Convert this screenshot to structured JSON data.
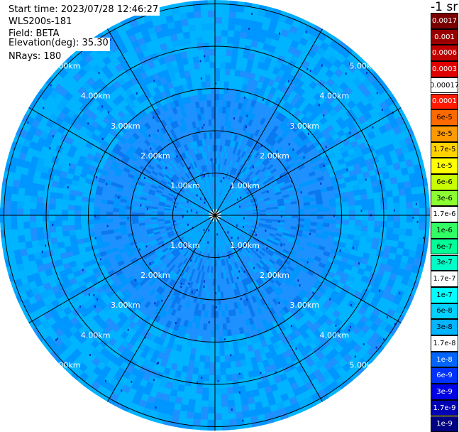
{
  "header": {
    "start_time": "Start time: 2023/07/28 12:46:27",
    "instrument": "WLS200s-181",
    "field": "Field: BETA",
    "elevation": "Elevation(deg): 35.30",
    "nrays": "NRays: 180"
  },
  "colorbar": {
    "unit_label": "-1 sr",
    "entries": [
      {
        "label": "0.0017",
        "color": "#7a0000",
        "text_color": "#ffffff"
      },
      {
        "label": "0.001",
        "color": "#9a0000",
        "text_color": "#ffffff"
      },
      {
        "label": "0.0006",
        "color": "#c00000",
        "text_color": "#ffffff"
      },
      {
        "label": "0.0003",
        "color": "#e00000",
        "text_color": "#ffffff"
      },
      {
        "label": "0.00017",
        "color": "#ffffff",
        "text_color": "#000000"
      },
      {
        "label": "0.0001",
        "color": "#ff1a00",
        "text_color": "#ffffff"
      },
      {
        "label": "6e-5",
        "color": "#ff6a00",
        "text_color": "#000000"
      },
      {
        "label": "3e-5",
        "color": "#ff9a00",
        "text_color": "#000000"
      },
      {
        "label": "1.7e-5",
        "color": "#ffd200",
        "text_color": "#000000"
      },
      {
        "label": "1e-5",
        "color": "#ffff00",
        "text_color": "#000000"
      },
      {
        "label": "6e-6",
        "color": "#c8ff00",
        "text_color": "#000000"
      },
      {
        "label": "3e-6",
        "color": "#8cff32",
        "text_color": "#000000"
      },
      {
        "label": "1.7e-6",
        "color": "#ffffff",
        "text_color": "#000000"
      },
      {
        "label": "1e-6",
        "color": "#32ff64",
        "text_color": "#000000"
      },
      {
        "label": "6e-7",
        "color": "#00ff96",
        "text_color": "#000000"
      },
      {
        "label": "3e-7",
        "color": "#00ffc8",
        "text_color": "#000000"
      },
      {
        "label": "1.7e-7",
        "color": "#ffffff",
        "text_color": "#000000"
      },
      {
        "label": "1e-7",
        "color": "#00ffff",
        "text_color": "#000000"
      },
      {
        "label": "6e-8",
        "color": "#00d2ff",
        "text_color": "#000000"
      },
      {
        "label": "3e-8",
        "color": "#00b4ff",
        "text_color": "#000000"
      },
      {
        "label": "1.7e-8",
        "color": "#ffffff",
        "text_color": "#000000"
      },
      {
        "label": "1e-8",
        "color": "#0064ff",
        "text_color": "#ffffff"
      },
      {
        "label": "6e-9",
        "color": "#0032ff",
        "text_color": "#ffffff"
      },
      {
        "label": "3e-9",
        "color": "#0000e6",
        "text_color": "#ffffff"
      },
      {
        "label": "1.7e-9",
        "color": "#0000b4",
        "text_color": "#ffffff"
      },
      {
        "label": "1e-9",
        "color": "#000082",
        "text_color": "#ffffff"
      }
    ]
  },
  "range_labels": [
    "1.00km",
    "2.00km",
    "3.00km",
    "4.00km",
    "5.00km"
  ],
  "map_colors": {
    "far_field": "#00b4ff",
    "far_field_alt": "#0096ff",
    "mid_field": "#1e90ff",
    "mid_field_alt": "#0a78f0",
    "near_field": "#00aaff",
    "speckle": "#0032c8",
    "gridline": "#000000",
    "range_label": "#ffffff"
  }
}
